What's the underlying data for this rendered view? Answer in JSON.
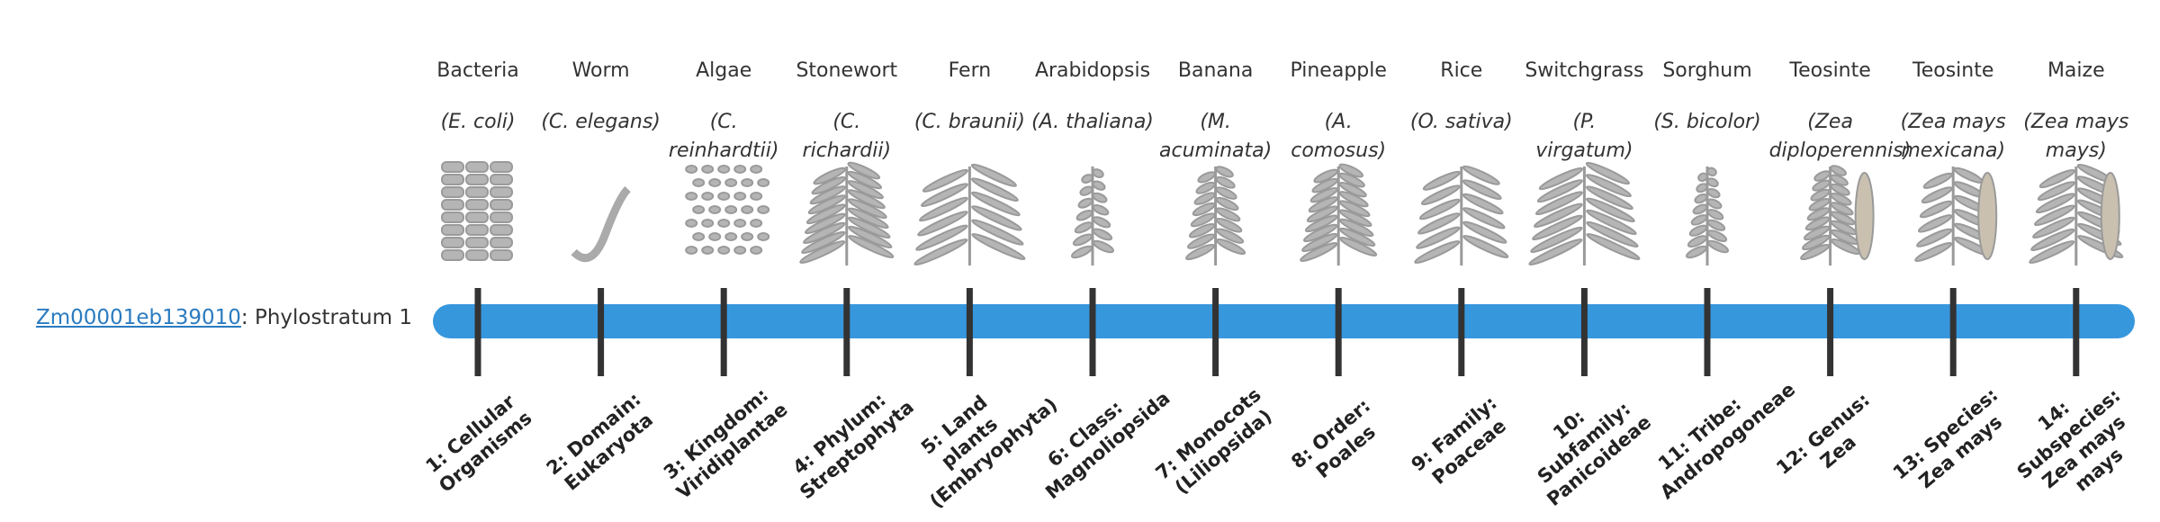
{
  "gene": {
    "id": "Zm00001eb139010",
    "stratum": ": Phylostratum 1"
  },
  "taxa": [
    {
      "name": "Bacteria",
      "species": "(E. coli)",
      "stratum": "1: Cellular Organisms"
    },
    {
      "name": "Worm",
      "species": "(C. elegans)",
      "stratum": "2: Domain: Eukaryota"
    },
    {
      "name": "Algae",
      "species": "(C. reinhardtii)",
      "stratum": "3: Kingdom: Viridiplantae"
    },
    {
      "name": "Stonewort",
      "species": "(C. richardii)",
      "stratum": "4: Phylum: Streptophyta"
    },
    {
      "name": "Fern",
      "species": "(C. braunii)",
      "stratum": "5: Land plants (Embryophyta)"
    },
    {
      "name": "Arabidopsis",
      "species": "(A. thaliana)",
      "stratum": "6: Class: Magnoliopsida"
    },
    {
      "name": "Banana",
      "species": "(M. acuminata)",
      "stratum": "7: Monocots (Liliopsida)"
    },
    {
      "name": "Pineapple",
      "species": "(A. comosus)",
      "stratum": "8: Order: Poales"
    },
    {
      "name": "Rice",
      "species": "(O. sativa)",
      "stratum": "9: Family: Poaceae"
    },
    {
      "name": "Switchgrass",
      "species": "(P. virgatum)",
      "stratum": "10: Subfamily: Panicoideae"
    },
    {
      "name": "Sorghum",
      "species": "(S. bicolor)",
      "stratum": "11: Tribe: Andropogoneae"
    },
    {
      "name": "Teosinte",
      "species": "(Zea diploperennis)",
      "stratum": "12: Genus: Zea"
    },
    {
      "name": "Teosinte",
      "species": "(Zea mays mexicana)",
      "stratum": "13: Species: Zea mays"
    },
    {
      "name": "Maize",
      "species": "(Zea mays mays)",
      "stratum": "14: Subspecies: Zea mays mays"
    }
  ]
}
